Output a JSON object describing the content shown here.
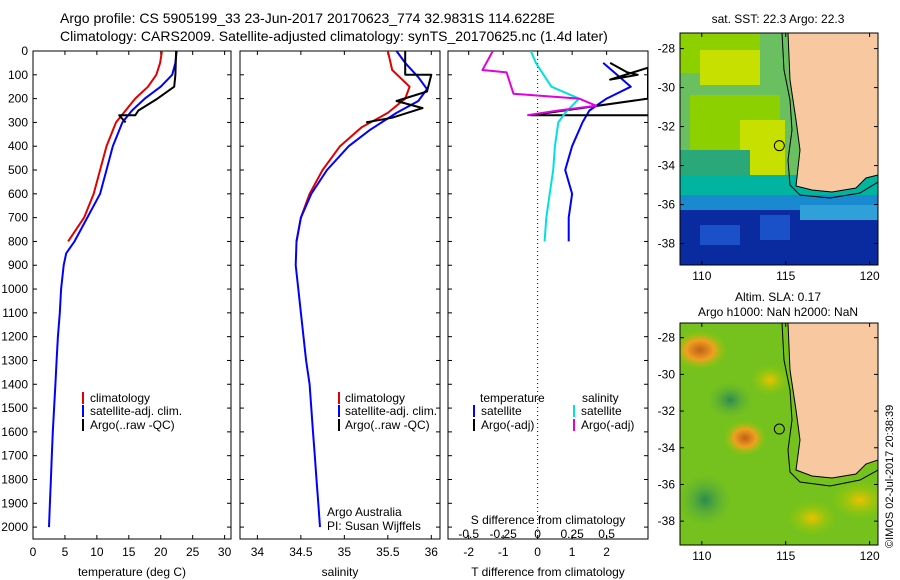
{
  "header": {
    "line1": "Argo profile: CS 5905199_33 23-Jun-2017 20170623_774 32.9831S 114.6228E",
    "line2": "Climatology: CARS2009. Satellite-adjusted climatology: synTS_20170625.nc (1.4d later)"
  },
  "colors": {
    "climatology": "#e00000",
    "satellite": "#0000ff",
    "argo": "#000000",
    "sat_salinity": "#00e0e0",
    "argo_salinity": "#e000e0",
    "land": "#f8c8a0"
  },
  "chart_data": [
    {
      "id": "temperature",
      "type": "line",
      "xlabel": "temperature (deg C)",
      "ylabel": "",
      "xlim": [
        0,
        31
      ],
      "ylim": [
        2050,
        0
      ],
      "xticks": [
        0,
        5,
        10,
        15,
        20,
        25,
        30
      ],
      "yticks": [
        0,
        100,
        200,
        300,
        400,
        500,
        600,
        700,
        800,
        900,
        1000,
        1100,
        1200,
        1300,
        1400,
        1500,
        1600,
        1700,
        1800,
        1900,
        2000
      ],
      "legend": [
        "climatology",
        "satellite-adj. clim.",
        "Argo(..raw -QC)"
      ],
      "series": [
        {
          "name": "climatology",
          "color": "#e00000",
          "points": [
            [
              20.2,
              0
            ],
            [
              19.9,
              50
            ],
            [
              19.3,
              100
            ],
            [
              18,
              150
            ],
            [
              16,
              200
            ],
            [
              14.5,
              250
            ],
            [
              13,
              300
            ],
            [
              11.5,
              400
            ],
            [
              10.5,
              500
            ],
            [
              9.5,
              600
            ],
            [
              8,
              700
            ],
            [
              5.5,
              800
            ]
          ]
        },
        {
          "name": "satellite-adj. clim.",
          "color": "#0000ff",
          "points": [
            [
              22.5,
              0
            ],
            [
              22.3,
              50
            ],
            [
              21.8,
              100
            ],
            [
              20,
              150
            ],
            [
              17.5,
              200
            ],
            [
              15.5,
              250
            ],
            [
              14,
              300
            ],
            [
              12.5,
              400
            ],
            [
              11.5,
              500
            ],
            [
              10.5,
              600
            ],
            [
              8.5,
              700
            ],
            [
              6.5,
              800
            ],
            [
              5.2,
              850
            ],
            [
              4.8,
              900
            ],
            [
              4.4,
              1000
            ],
            [
              4.2,
              1100
            ],
            [
              3.9,
              1200
            ],
            [
              3.7,
              1300
            ],
            [
              3.5,
              1400
            ],
            [
              3.3,
              1500
            ],
            [
              3.1,
              1600
            ],
            [
              2.95,
              1700
            ],
            [
              2.8,
              1800
            ],
            [
              2.65,
              1900
            ],
            [
              2.5,
              2000
            ]
          ]
        },
        {
          "name": "Argo(..raw -QC)",
          "color": "#000000",
          "points": [
            [
              22.4,
              0
            ],
            [
              22.3,
              100
            ],
            [
              22.1,
              150
            ],
            [
              19.5,
              200
            ],
            [
              16.5,
              250
            ],
            [
              16,
              270
            ],
            [
              13.5,
              270
            ],
            [
              14.5,
              300
            ]
          ]
        }
      ]
    },
    {
      "id": "salinity",
      "type": "line",
      "xlabel": "salinity",
      "xlim": [
        33.8,
        36.1
      ],
      "ylim": [
        2050,
        0
      ],
      "xticks": [
        34,
        34.5,
        35,
        35.5,
        36
      ],
      "legend": [
        "climatology",
        "satellite-adj. clim.",
        "Argo(..raw -QC)"
      ],
      "annotation": [
        "Argo Australia",
        "PI: Susan Wijffels"
      ],
      "series": [
        {
          "name": "climatology",
          "color": "#e00000",
          "points": [
            [
              35.5,
              0
            ],
            [
              35.55,
              80
            ],
            [
              35.75,
              150
            ],
            [
              35.7,
              200
            ],
            [
              35.5,
              260
            ],
            [
              35.2,
              320
            ],
            [
              34.95,
              400
            ],
            [
              34.75,
              500
            ],
            [
              34.6,
              600
            ],
            [
              34.5,
              700
            ],
            [
              34.45,
              800
            ]
          ]
        },
        {
          "name": "satellite-adj. clim.",
          "color": "#0000ff",
          "points": [
            [
              35.6,
              0
            ],
            [
              35.7,
              50
            ],
            [
              35.85,
              110
            ],
            [
              35.95,
              160
            ],
            [
              35.85,
              210
            ],
            [
              35.6,
              260
            ],
            [
              35.3,
              330
            ],
            [
              35.05,
              400
            ],
            [
              34.8,
              500
            ],
            [
              34.62,
              600
            ],
            [
              34.5,
              700
            ],
            [
              34.45,
              800
            ],
            [
              34.44,
              900
            ],
            [
              34.47,
              1000
            ],
            [
              34.5,
              1100
            ],
            [
              34.53,
              1200
            ],
            [
              34.56,
              1300
            ],
            [
              34.6,
              1400
            ],
            [
              34.62,
              1500
            ],
            [
              34.64,
              1600
            ],
            [
              34.66,
              1700
            ],
            [
              34.68,
              1800
            ],
            [
              34.7,
              1900
            ],
            [
              34.72,
              2000
            ]
          ]
        },
        {
          "name": "Argo(..raw -QC)",
          "color": "#000000",
          "points": [
            [
              35.7,
              0
            ],
            [
              35.7,
              100
            ],
            [
              36,
              100
            ],
            [
              35.95,
              170
            ],
            [
              35.6,
              210
            ],
            [
              35.9,
              240
            ],
            [
              35.55,
              280
            ],
            [
              35.25,
              300
            ]
          ]
        }
      ]
    },
    {
      "id": "difference",
      "type": "line",
      "xlabel": "T difference from climatology",
      "x2label": "S difference from climatology",
      "xlim": [
        -2.6,
        3.2
      ],
      "ylim": [
        2050,
        0
      ],
      "xticks": [
        -2,
        -1,
        0,
        1,
        2
      ],
      "x2ticks": [
        "-0.5",
        "-0.25",
        "0",
        "0.25",
        "0.5"
      ],
      "legend": {
        "temperature": "temperature",
        "salinity": "salinity",
        "t_sat": "satellite",
        "t_argo": "Argo(-adj)",
        "s_sat": "satellite",
        "s_argo": "Argo(-adj)"
      },
      "series": [
        {
          "name": "temperature satellite",
          "color": "#0000ff",
          "points": [
            [
              1.9,
              50
            ],
            [
              2.3,
              100
            ],
            [
              2.7,
              150
            ],
            [
              2,
              200
            ],
            [
              1.5,
              250
            ],
            [
              1.3,
              300
            ],
            [
              1,
              400
            ],
            [
              0.8,
              500
            ],
            [
              1,
              600
            ],
            [
              0.9,
              700
            ],
            [
              0.9,
              800
            ]
          ]
        },
        {
          "name": "Argo(-adj) temperature",
          "color": "#000000",
          "points": [
            [
              2.1,
              50
            ],
            [
              2.6,
              90
            ],
            [
              2.9,
              100
            ],
            [
              2.1,
              120
            ],
            [
              3.2,
              70
            ],
            [
              3.2,
              200
            ],
            [
              -0.2,
              270
            ],
            [
              3.2,
              270
            ]
          ]
        },
        {
          "name": "salinity satellite",
          "color": "#00e0e0",
          "points": [
            [
              -0.2,
              0
            ],
            [
              -0.05,
              50
            ],
            [
              0.4,
              150
            ],
            [
              1.2,
              200
            ],
            [
              0.8,
              260
            ],
            [
              0.6,
              300
            ],
            [
              0.5,
              400
            ],
            [
              0.45,
              500
            ],
            [
              0.35,
              600
            ],
            [
              0.25,
              700
            ],
            [
              0.2,
              800
            ]
          ]
        },
        {
          "name": "Argo(-adj) salinity",
          "color": "#e000e0",
          "points": [
            [
              -1.3,
              0
            ],
            [
              -1.6,
              80
            ],
            [
              -0.9,
              90
            ],
            [
              -0.7,
              180
            ],
            [
              1.2,
              200
            ],
            [
              1.7,
              230
            ],
            [
              0.6,
              250
            ],
            [
              -0.3,
              270
            ]
          ]
        }
      ]
    }
  ],
  "map_sst": {
    "title": "sat. SST: 22.3  Argo: 22.3",
    "lat_ticks": [
      "-28",
      "-30",
      "-32",
      "-34",
      "-36",
      "-38"
    ],
    "lon_ticks": [
      "110",
      "115",
      "120"
    ],
    "argo_lon": 114.62,
    "argo_lat": -32.98
  },
  "map_sla": {
    "title1": "Altim. SLA: 0.17",
    "title2": "Argo h1000: NaN  h2000: NaN",
    "lat_ticks": [
      "-28",
      "-30",
      "-32",
      "-34",
      "-36",
      "-38"
    ],
    "lon_ticks": [
      "110",
      "115",
      "120"
    ],
    "argo_lon": 114.62,
    "argo_lat": -32.98
  },
  "footer": {
    "credit": "©IMOS 02-Jul-2017 20:38:39"
  }
}
